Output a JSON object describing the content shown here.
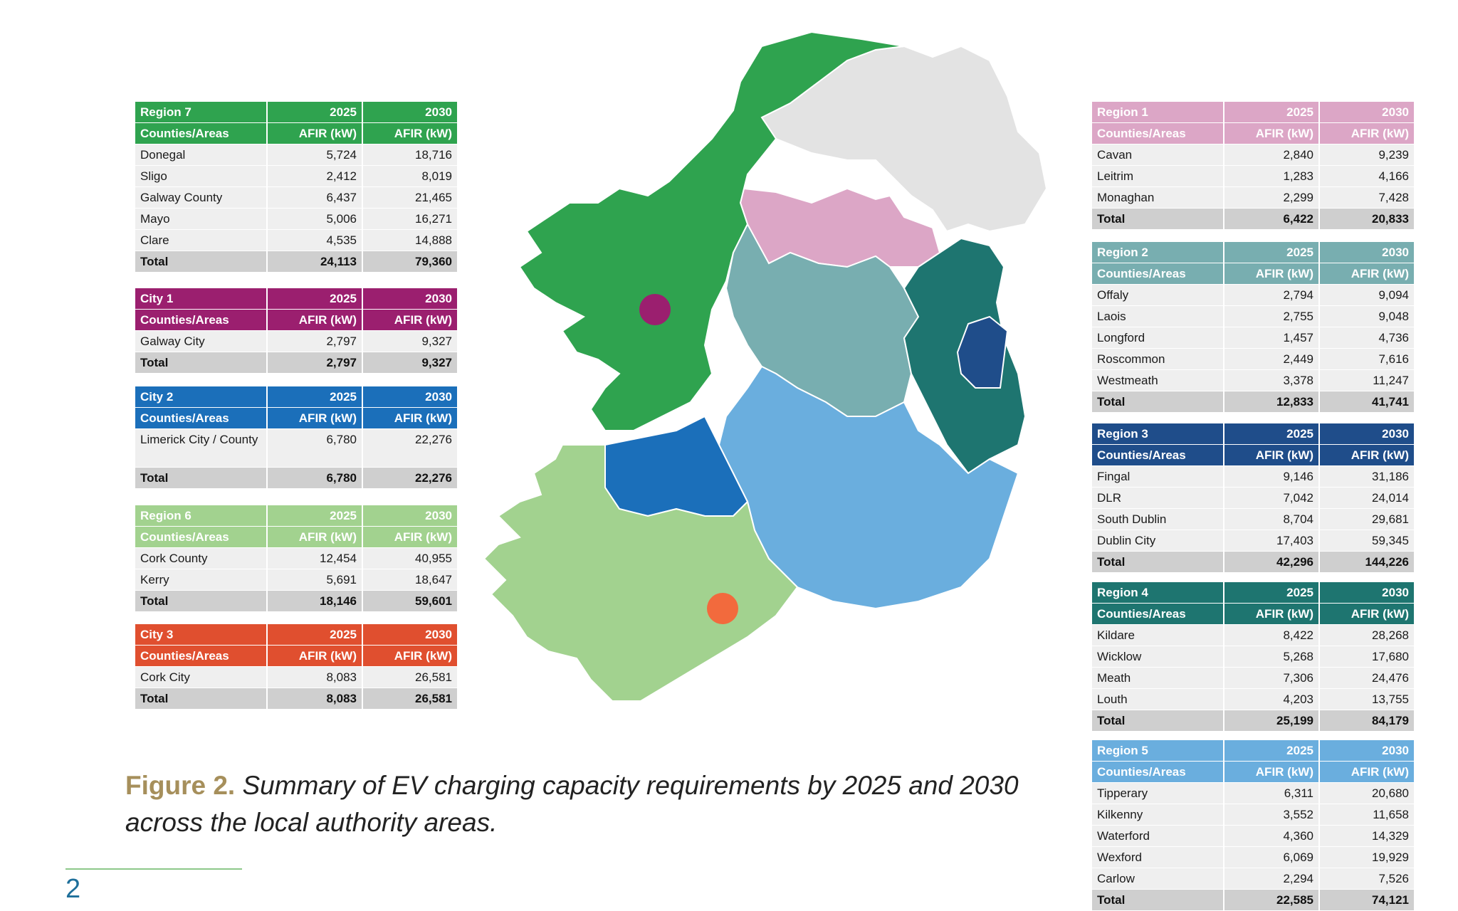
{
  "colors": {
    "region7": "#2fa34f",
    "city1": "#9b1f6f",
    "city2": "#1b6fba",
    "region6": "#a2d28f",
    "city3": "#e04f2f",
    "region1": "#dca6c6",
    "region2": "#78aeb0",
    "region3": "#1f4d8a",
    "region4": "#1e7570",
    "region5": "#6aaede",
    "ni": "#e3e3e3",
    "marker_city1": "#9b1f6f",
    "marker_city3": "#f26a3d"
  },
  "tables": {
    "region7": {
      "name": "Region 7",
      "y1": "2025",
      "y2": "2030",
      "sub": [
        "Counties/Areas",
        "AFIR (kW)",
        "AFIR (kW)"
      ],
      "rows": [
        [
          "Donegal",
          "5,724",
          "18,716"
        ],
        [
          "Sligo",
          "2,412",
          "8,019"
        ],
        [
          "Galway County",
          "6,437",
          "21,465"
        ],
        [
          "Mayo",
          "5,006",
          "16,271"
        ],
        [
          "Clare",
          "4,535",
          "14,888"
        ]
      ],
      "total": [
        "Total",
        "24,113",
        "79,360"
      ]
    },
    "city1": {
      "name": "City 1",
      "y1": "2025",
      "y2": "2030",
      "sub": [
        "Counties/Areas",
        "AFIR (kW)",
        "AFIR (kW)"
      ],
      "rows": [
        [
          "Galway City",
          "2,797",
          "9,327"
        ]
      ],
      "total": [
        "Total",
        "2,797",
        "9,327"
      ]
    },
    "city2": {
      "name": "City 2",
      "y1": "2025",
      "y2": "2030",
      "sub": [
        "Counties/Areas",
        "AFIR (kW)",
        "AFIR (kW)"
      ],
      "rows": [
        [
          "Limerick City / County",
          "6,780",
          "22,276"
        ]
      ],
      "total": [
        "Total",
        "6,780",
        "22,276"
      ]
    },
    "region6": {
      "name": "Region 6",
      "y1": "2025",
      "y2": "2030",
      "sub": [
        "Counties/Areas",
        "AFIR (kW)",
        "AFIR (kW)"
      ],
      "rows": [
        [
          "Cork County",
          "12,454",
          "40,955"
        ],
        [
          "Kerry",
          "5,691",
          "18,647"
        ]
      ],
      "total": [
        "Total",
        "18,146",
        "59,601"
      ]
    },
    "city3": {
      "name": "City 3",
      "y1": "2025",
      "y2": "2030",
      "sub": [
        "Counties/Areas",
        "AFIR (kW)",
        "AFIR (kW)"
      ],
      "rows": [
        [
          "Cork City",
          "8,083",
          "26,581"
        ]
      ],
      "total": [
        "Total",
        "8,083",
        "26,581"
      ]
    },
    "region1": {
      "name": "Region 1",
      "y1": "2025",
      "y2": "2030",
      "sub": [
        "Counties/Areas",
        "AFIR (kW)",
        "AFIR (kW)"
      ],
      "rows": [
        [
          "Cavan",
          "2,840",
          "9,239"
        ],
        [
          "Leitrim",
          "1,283",
          "4,166"
        ],
        [
          "Monaghan",
          "2,299",
          "7,428"
        ]
      ],
      "total": [
        "Total",
        "6,422",
        "20,833"
      ]
    },
    "region2": {
      "name": "Region 2",
      "y1": "2025",
      "y2": "2030",
      "sub": [
        "Counties/Areas",
        "AFIR (kW)",
        "AFIR (kW)"
      ],
      "rows": [
        [
          "Offaly",
          "2,794",
          "9,094"
        ],
        [
          "Laois",
          "2,755",
          "9,048"
        ],
        [
          "Longford",
          "1,457",
          "4,736"
        ],
        [
          "Roscommon",
          "2,449",
          "7,616"
        ],
        [
          "Westmeath",
          "3,378",
          "11,247"
        ]
      ],
      "total": [
        "Total",
        "12,833",
        "41,741"
      ]
    },
    "region3": {
      "name": "Region 3",
      "y1": "2025",
      "y2": "2030",
      "sub": [
        "Counties/Areas",
        "AFIR (kW)",
        "AFIR (kW)"
      ],
      "rows": [
        [
          "Fingal",
          "9,146",
          "31,186"
        ],
        [
          "DLR",
          "7,042",
          "24,014"
        ],
        [
          "South Dublin",
          "8,704",
          "29,681"
        ],
        [
          "Dublin City",
          "17,403",
          "59,345"
        ]
      ],
      "total": [
        "Total",
        "42,296",
        "144,226"
      ]
    },
    "region4": {
      "name": "Region 4",
      "y1": "2025",
      "y2": "2030",
      "sub": [
        "Counties/Areas",
        "AFIR (kW)",
        "AFIR (kW)"
      ],
      "rows": [
        [
          "Kildare",
          "8,422",
          "28,268"
        ],
        [
          "Wicklow",
          "5,268",
          "17,680"
        ],
        [
          "Meath",
          "7,306",
          "24,476"
        ],
        [
          "Louth",
          "4,203",
          "13,755"
        ]
      ],
      "total": [
        "Total",
        "25,199",
        "84,179"
      ]
    },
    "region5": {
      "name": "Region 5",
      "y1": "2025",
      "y2": "2030",
      "sub": [
        "Counties/Areas",
        "AFIR (kW)",
        "AFIR (kW)"
      ],
      "rows": [
        [
          "Tipperary",
          "6,311",
          "20,680"
        ],
        [
          "Kilkenny",
          "3,552",
          "11,658"
        ],
        [
          "Waterford",
          "4,360",
          "14,329"
        ],
        [
          "Wexford",
          "6,069",
          "19,929"
        ],
        [
          "Carlow",
          "2,294",
          "7,526"
        ]
      ],
      "total": [
        "Total",
        "22,585",
        "74,121"
      ]
    }
  },
  "caption": {
    "figure": "Figure 2.",
    "text": " Summary of EV charging capacity requirements by 2025 and 2030 across the local authority areas."
  },
  "page_number": "2"
}
